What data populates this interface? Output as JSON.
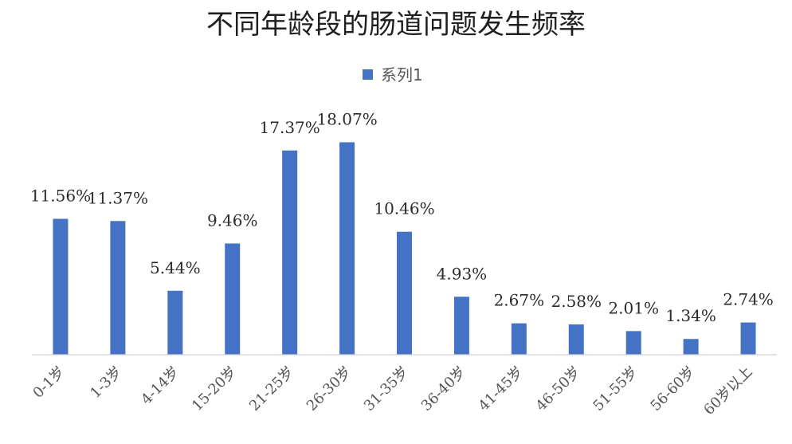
{
  "chart_data": {
    "type": "bar",
    "title": "不同年龄段的肠道问题发生频率",
    "categories": [
      "0-1岁",
      "1-3岁",
      "4-14岁",
      "15-20岁",
      "21-25岁",
      "26-30岁",
      "31-35岁",
      "36-40岁",
      "41-45岁",
      "46-50岁",
      "51-55岁",
      "56-60岁",
      "60岁以上"
    ],
    "series": [
      {
        "name": "系列1",
        "values": [
          11.56,
          11.37,
          5.44,
          9.46,
          17.37,
          18.07,
          10.46,
          4.93,
          2.67,
          2.58,
          2.01,
          1.34,
          2.74
        ],
        "labels": [
          "11.56%",
          "11.37%",
          "5.44%",
          "9.46%",
          "17.37%",
          "18.07%",
          "10.46%",
          "4.93%",
          "2.67%",
          "2.58%",
          "2.01%",
          "1.34%",
          "2.74%"
        ],
        "color": "#4472C4"
      }
    ],
    "ylim": [
      0,
      20
    ],
    "grid": false,
    "legend": "top-center"
  }
}
